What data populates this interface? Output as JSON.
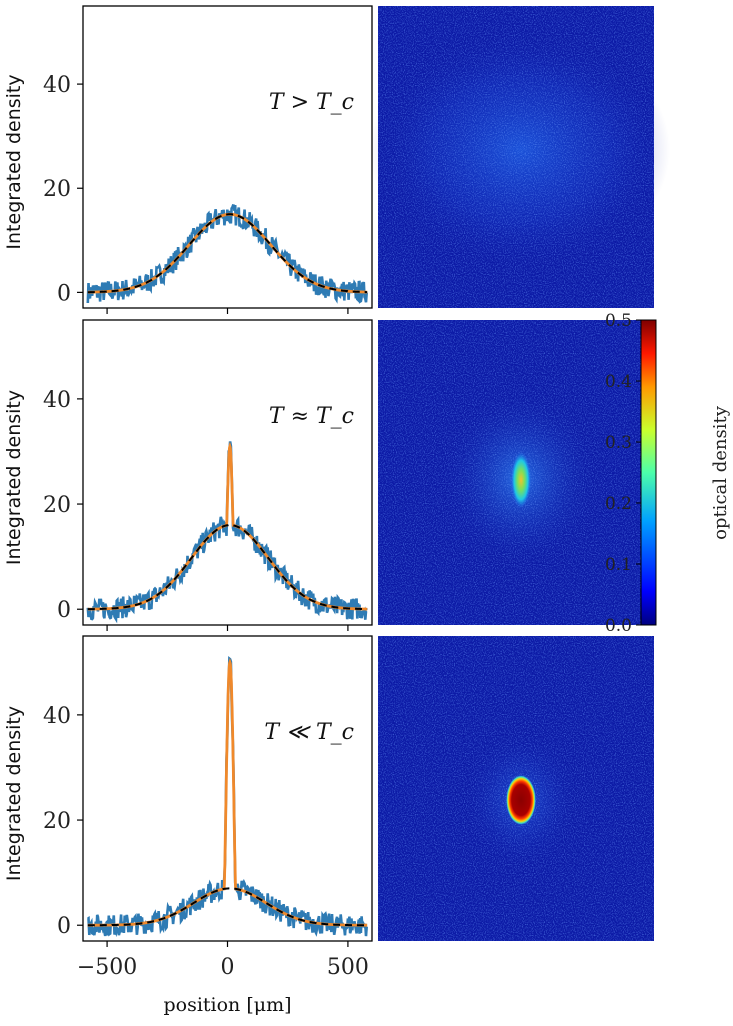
{
  "figure": {
    "colorbar": {
      "label": "optical density",
      "range": [
        0.0,
        0.5
      ],
      "ticks": [
        0.0,
        0.1,
        0.2,
        0.3,
        0.4,
        0.5
      ],
      "colormap": "jet"
    },
    "background_color": "#ffffff"
  },
  "colors": {
    "data_line": "#2e7bb4",
    "full_fit": "#f0892b",
    "thermal_fit": "#000000",
    "image_background": "#0c1aa6"
  },
  "chart_data": [
    {
      "type": "line",
      "panel": "top",
      "annotation": "T > T_c",
      "ylabel": "Integrated density",
      "xlabel": "",
      "xlim": [
        -600,
        600
      ],
      "ylim": [
        -3,
        55
      ],
      "xticks": [
        -500,
        0,
        500
      ],
      "yticks": [
        0,
        20,
        40
      ],
      "show_xtick_labels": false,
      "series": [
        {
          "style": "data",
          "color": "#2e7bb4",
          "thermal_amplitude": 15,
          "thermal_width": 170,
          "center": 10,
          "noise": 1.3,
          "bec_amplitude": 0
        },
        {
          "style": "bimodal-fit",
          "color": "#f0892b",
          "thermal_amplitude": 15,
          "thermal_width": 170,
          "center": 10,
          "bec_amplitude": 0
        },
        {
          "style": "thermal-fit",
          "color": "#000000",
          "thermal_amplitude": 15,
          "thermal_width": 170,
          "center": 10
        }
      ]
    },
    {
      "type": "line",
      "panel": "middle",
      "annotation": "T ≈ T_c",
      "ylabel": "Integrated density",
      "xlabel": "",
      "xlim": [
        -600,
        600
      ],
      "ylim": [
        -3,
        55
      ],
      "xticks": [
        -500,
        0,
        500
      ],
      "yticks": [
        0,
        20,
        40
      ],
      "show_xtick_labels": false,
      "series": [
        {
          "style": "data",
          "color": "#2e7bb4",
          "thermal_amplitude": 16,
          "thermal_width": 160,
          "center": 10,
          "noise": 1.3,
          "bec_amplitude": 15,
          "bec_width": 14
        },
        {
          "style": "bimodal-fit",
          "color": "#f0892b",
          "thermal_amplitude": 16,
          "thermal_width": 160,
          "center": 10,
          "bec_amplitude": 15,
          "bec_width": 14
        },
        {
          "style": "thermal-fit",
          "color": "#000000",
          "thermal_amplitude": 16,
          "thermal_width": 160,
          "center": 10
        }
      ]
    },
    {
      "type": "line",
      "panel": "bottom",
      "annotation": "T ≪ T_c",
      "ylabel": "Integrated density",
      "xlabel": "position [μm]",
      "xlim": [
        -600,
        600
      ],
      "ylim": [
        -3,
        55
      ],
      "xticks": [
        -500,
        0,
        500
      ],
      "yticks": [
        0,
        20,
        40
      ],
      "show_xtick_labels": true,
      "series": [
        {
          "style": "data",
          "color": "#2e7bb4",
          "thermal_amplitude": 7,
          "thermal_width": 150,
          "center": 10,
          "noise": 1.3,
          "bec_amplitude": 43,
          "bec_width": 24
        },
        {
          "style": "bimodal-fit",
          "color": "#f0892b",
          "thermal_amplitude": 7,
          "thermal_width": 150,
          "center": 10,
          "bec_amplitude": 43,
          "bec_width": 24
        },
        {
          "style": "thermal-fit",
          "color": "#000000",
          "thermal_amplitude": 7,
          "thermal_width": 150,
          "center": 10
        }
      ]
    }
  ],
  "absorption_images": [
    {
      "panel": "top",
      "cloud": "broad-thermal",
      "peak_od": 0.08
    },
    {
      "panel": "middle",
      "cloud": "small-condensate",
      "peak_od": 0.3
    },
    {
      "panel": "bottom",
      "cloud": "saturated-condensate",
      "peak_od": 0.5
    }
  ]
}
